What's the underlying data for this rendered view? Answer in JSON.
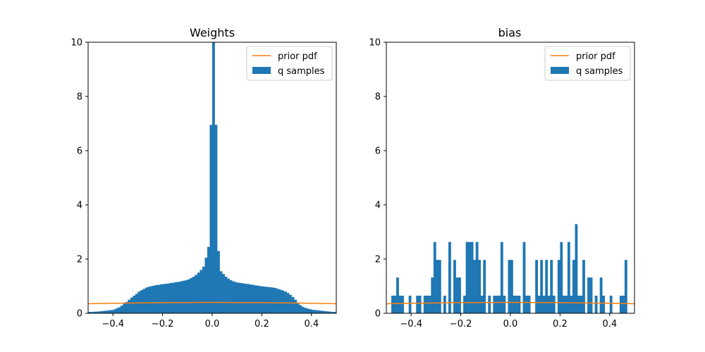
{
  "chart_data": [
    {
      "type": "histogram",
      "title": "Weights",
      "xlabel": "",
      "ylabel": "",
      "xlim": [
        -0.5,
        0.5
      ],
      "ylim": [
        0,
        10
      ],
      "xticks": [
        -0.4,
        -0.2,
        0.0,
        0.2,
        0.4
      ],
      "xtick_labels": [
        "−0.4",
        "−0.2",
        "0.0",
        "0.2",
        "0.4"
      ],
      "yticks": [
        0,
        2,
        4,
        6,
        8,
        10
      ],
      "ytick_labels": [
        "0",
        "2",
        "4",
        "6",
        "8",
        "10"
      ],
      "grid": false,
      "legend_position": "top-right",
      "legend": [
        "prior pdf",
        "q samples"
      ],
      "series": [
        {
          "name": "q samples",
          "kind": "histogram",
          "color": "#1f77b4",
          "bin_width": 0.01,
          "bins": [
            [
              -0.5,
              0.05
            ],
            [
              -0.49,
              0.05
            ],
            [
              -0.48,
              0.06
            ],
            [
              -0.47,
              0.06
            ],
            [
              -0.46,
              0.07
            ],
            [
              -0.45,
              0.08
            ],
            [
              -0.44,
              0.09
            ],
            [
              -0.43,
              0.1
            ],
            [
              -0.42,
              0.11
            ],
            [
              -0.41,
              0.12
            ],
            [
              -0.4,
              0.14
            ],
            [
              -0.39,
              0.18
            ],
            [
              -0.38,
              0.22
            ],
            [
              -0.37,
              0.28
            ],
            [
              -0.36,
              0.35
            ],
            [
              -0.35,
              0.42
            ],
            [
              -0.34,
              0.5
            ],
            [
              -0.33,
              0.58
            ],
            [
              -0.32,
              0.65
            ],
            [
              -0.31,
              0.72
            ],
            [
              -0.3,
              0.8
            ],
            [
              -0.29,
              0.85
            ],
            [
              -0.28,
              0.9
            ],
            [
              -0.27,
              0.95
            ],
            [
              -0.26,
              0.98
            ],
            [
              -0.25,
              1.0
            ],
            [
              -0.24,
              1.02
            ],
            [
              -0.23,
              1.04
            ],
            [
              -0.22,
              1.05
            ],
            [
              -0.21,
              1.07
            ],
            [
              -0.2,
              1.08
            ],
            [
              -0.19,
              1.09
            ],
            [
              -0.18,
              1.1
            ],
            [
              -0.17,
              1.12
            ],
            [
              -0.16,
              1.13
            ],
            [
              -0.15,
              1.15
            ],
            [
              -0.14,
              1.16
            ],
            [
              -0.13,
              1.18
            ],
            [
              -0.12,
              1.2
            ],
            [
              -0.11,
              1.22
            ],
            [
              -0.1,
              1.25
            ],
            [
              -0.09,
              1.3
            ],
            [
              -0.08,
              1.35
            ],
            [
              -0.07,
              1.42
            ],
            [
              -0.06,
              1.5
            ],
            [
              -0.05,
              1.6
            ],
            [
              -0.04,
              1.72
            ],
            [
              -0.03,
              2.05
            ],
            [
              -0.02,
              2.45
            ],
            [
              -0.01,
              6.95
            ],
            [
              0.0,
              10.0
            ],
            [
              0.01,
              6.95
            ],
            [
              0.02,
              2.3
            ],
            [
              0.03,
              1.55
            ],
            [
              0.04,
              1.45
            ],
            [
              0.05,
              1.35
            ],
            [
              0.06,
              1.28
            ],
            [
              0.07,
              1.22
            ],
            [
              0.08,
              1.18
            ],
            [
              0.09,
              1.15
            ],
            [
              0.1,
              1.13
            ],
            [
              0.11,
              1.12
            ],
            [
              0.12,
              1.1
            ],
            [
              0.13,
              1.09
            ],
            [
              0.14,
              1.08
            ],
            [
              0.15,
              1.06
            ],
            [
              0.16,
              1.05
            ],
            [
              0.17,
              1.03
            ],
            [
              0.18,
              1.02
            ],
            [
              0.19,
              1.0
            ],
            [
              0.2,
              0.99
            ],
            [
              0.21,
              0.98
            ],
            [
              0.22,
              0.97
            ],
            [
              0.23,
              0.96
            ],
            [
              0.24,
              0.95
            ],
            [
              0.25,
              0.93
            ],
            [
              0.26,
              0.9
            ],
            [
              0.27,
              0.87
            ],
            [
              0.28,
              0.84
            ],
            [
              0.29,
              0.8
            ],
            [
              0.3,
              0.75
            ],
            [
              0.31,
              0.68
            ],
            [
              0.32,
              0.6
            ],
            [
              0.33,
              0.5
            ],
            [
              0.34,
              0.4
            ],
            [
              0.35,
              0.3
            ],
            [
              0.36,
              0.24
            ],
            [
              0.37,
              0.2
            ],
            [
              0.38,
              0.17
            ],
            [
              0.39,
              0.15
            ],
            [
              0.4,
              0.13
            ],
            [
              0.41,
              0.12
            ],
            [
              0.42,
              0.11
            ],
            [
              0.43,
              0.1
            ],
            [
              0.44,
              0.09
            ],
            [
              0.45,
              0.08
            ],
            [
              0.46,
              0.07
            ],
            [
              0.47,
              0.06
            ],
            [
              0.48,
              0.05
            ],
            [
              0.49,
              0.05
            ]
          ]
        },
        {
          "name": "prior pdf",
          "kind": "line",
          "color": "#ff7f0e",
          "distribution": "normal",
          "mean": 0,
          "std": 1
        }
      ]
    },
    {
      "type": "histogram",
      "title": "bias",
      "xlabel": "",
      "ylabel": "",
      "xlim": [
        -0.5,
        0.5
      ],
      "ylim": [
        0,
        10
      ],
      "xticks": [
        -0.4,
        -0.2,
        0.0,
        0.2,
        0.4
      ],
      "xtick_labels": [
        "−0.4",
        "−0.2",
        "0.0",
        "0.2",
        "0.4"
      ],
      "yticks": [
        0,
        2,
        4,
        6,
        8,
        10
      ],
      "ytick_labels": [
        "0",
        "2",
        "4",
        "6",
        "8",
        "10"
      ],
      "grid": false,
      "legend_position": "top-right",
      "legend": [
        "prior pdf",
        "q samples"
      ],
      "series": [
        {
          "name": "q samples",
          "kind": "histogram",
          "color": "#1f77b4",
          "bin_width": 0.01,
          "bins": [
            [
              -0.48,
              0.65
            ],
            [
              -0.47,
              0.65
            ],
            [
              -0.46,
              1.32
            ],
            [
              -0.45,
              0.65
            ],
            [
              -0.44,
              0.65
            ],
            [
              -0.41,
              0.65
            ],
            [
              -0.38,
              0.65
            ],
            [
              -0.37,
              0.65
            ],
            [
              -0.35,
              0.65
            ],
            [
              -0.34,
              0.65
            ],
            [
              -0.33,
              0.65
            ],
            [
              -0.32,
              1.32
            ],
            [
              -0.31,
              2.63
            ],
            [
              -0.3,
              1.97
            ],
            [
              -0.29,
              1.97
            ],
            [
              -0.27,
              0.65
            ],
            [
              -0.25,
              2.63
            ],
            [
              -0.23,
              1.97
            ],
            [
              -0.22,
              1.32
            ],
            [
              -0.21,
              1.32
            ],
            [
              -0.19,
              0.65
            ],
            [
              -0.18,
              2.63
            ],
            [
              -0.17,
              2.63
            ],
            [
              -0.16,
              2.63
            ],
            [
              -0.15,
              1.97
            ],
            [
              -0.14,
              2.63
            ],
            [
              -0.13,
              1.97
            ],
            [
              -0.12,
              0.65
            ],
            [
              -0.11,
              1.97
            ],
            [
              -0.09,
              0.65
            ],
            [
              -0.07,
              0.65
            ],
            [
              -0.06,
              0.65
            ],
            [
              -0.05,
              0.65
            ],
            [
              -0.04,
              2.63
            ],
            [
              -0.03,
              0.65
            ],
            [
              -0.01,
              1.97
            ],
            [
              0.0,
              1.97
            ],
            [
              0.01,
              0.65
            ],
            [
              0.02,
              0.65
            ],
            [
              0.03,
              0.65
            ],
            [
              0.05,
              2.63
            ],
            [
              0.06,
              0.65
            ],
            [
              0.07,
              0.65
            ],
            [
              0.1,
              1.97
            ],
            [
              0.11,
              0.65
            ],
            [
              0.12,
              1.97
            ],
            [
              0.13,
              0.65
            ],
            [
              0.14,
              1.97
            ],
            [
              0.15,
              0.65
            ],
            [
              0.16,
              1.97
            ],
            [
              0.17,
              0.65
            ],
            [
              0.19,
              1.97
            ],
            [
              0.2,
              2.63
            ],
            [
              0.21,
              0.65
            ],
            [
              0.22,
              0.65
            ],
            [
              0.23,
              2.63
            ],
            [
              0.24,
              0.65
            ],
            [
              0.25,
              1.97
            ],
            [
              0.26,
              3.29
            ],
            [
              0.27,
              0.65
            ],
            [
              0.28,
              0.65
            ],
            [
              0.29,
              1.97
            ],
            [
              0.31,
              1.32
            ],
            [
              0.32,
              1.32
            ],
            [
              0.34,
              0.65
            ],
            [
              0.36,
              1.32
            ],
            [
              0.37,
              0.65
            ],
            [
              0.4,
              0.65
            ],
            [
              0.44,
              0.65
            ],
            [
              0.45,
              0.65
            ],
            [
              0.46,
              1.97
            ]
          ]
        },
        {
          "name": "prior pdf",
          "kind": "line",
          "color": "#ff7f0e",
          "distribution": "normal",
          "mean": 0,
          "std": 1
        }
      ]
    }
  ]
}
